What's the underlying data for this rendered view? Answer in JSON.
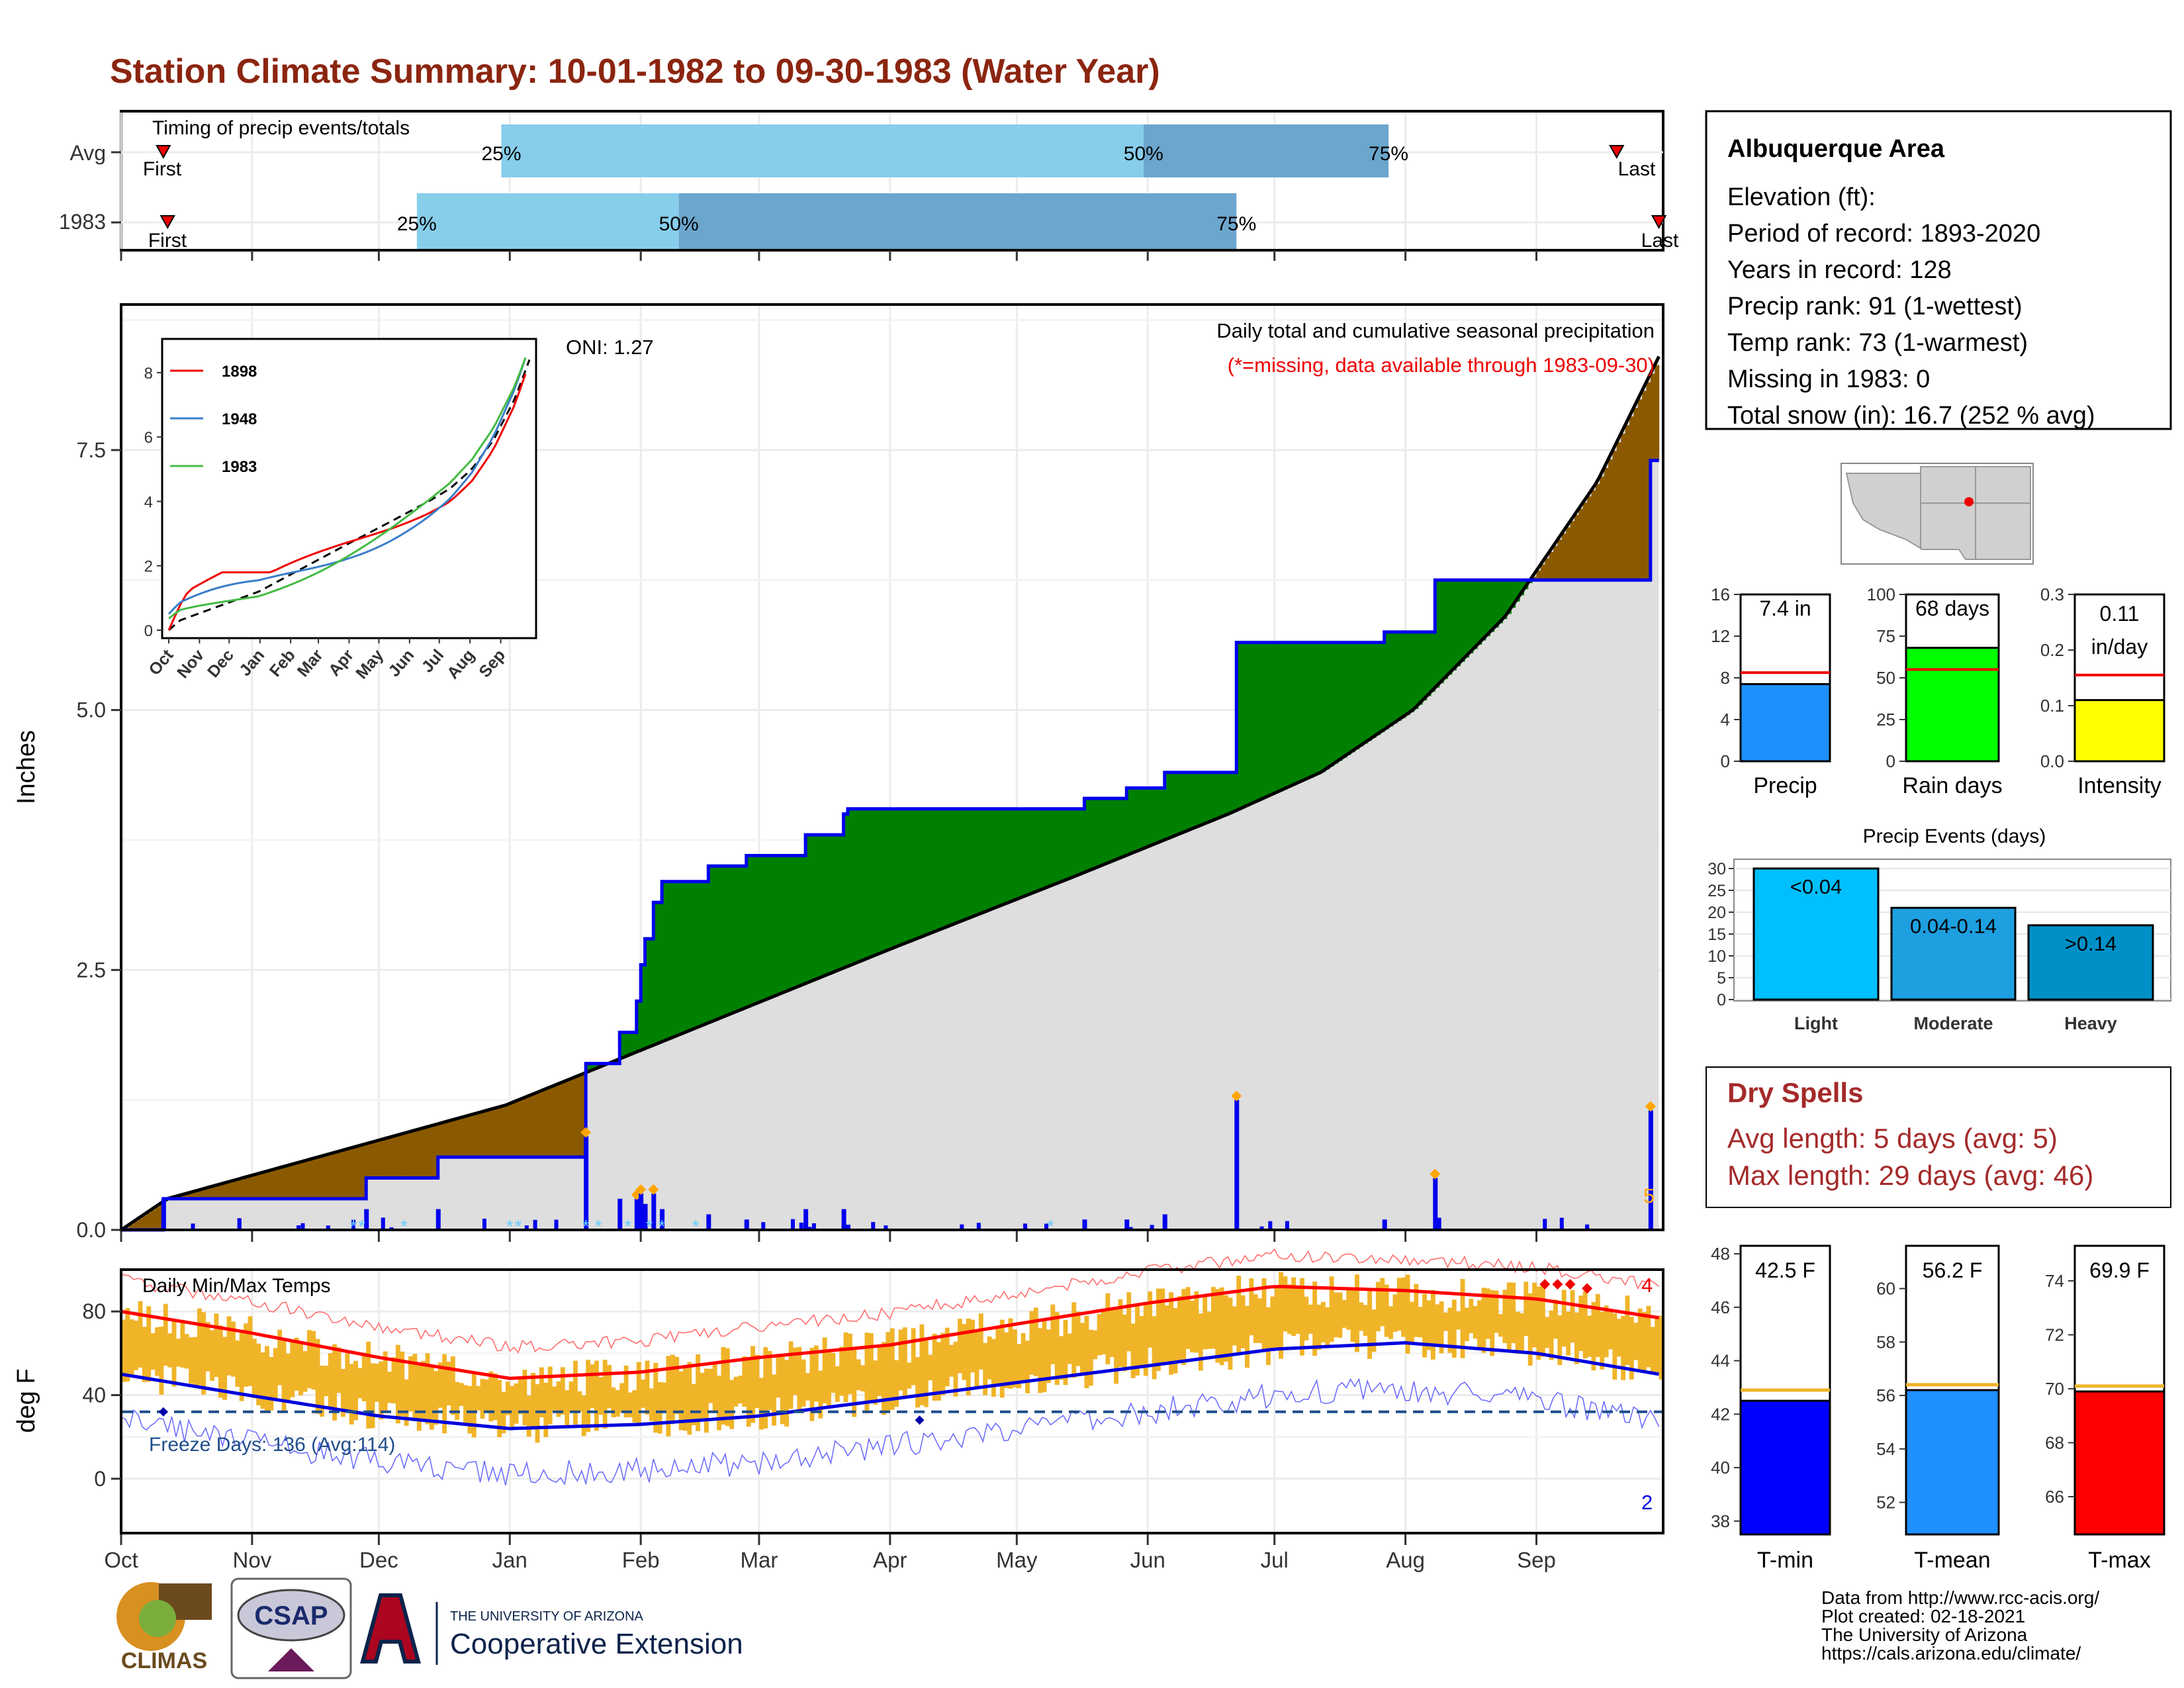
{
  "page": {
    "title": "Station Climate Summary: 10-01-1982 to 09-30-1983 (Water Year)"
  },
  "colors": {
    "title": "#8B2510",
    "timing_light": "#87CEEB",
    "timing_dark": "#6CA6CD",
    "below_avg_fill": "#8B5A00",
    "above_avg_fill": "#008000",
    "avg_fill": "#DEDEDE",
    "precip_line": "#0000EE",
    "temp_bar": "#F0B429",
    "tmax": "#FF0000",
    "tmin": "#0000DD",
    "freeze": "#1F4E8C",
    "precip_bar": "#1E90FF",
    "rain_bar": "#00FF00",
    "intensity_bar": "#FFFF00",
    "light": "#00BFFF",
    "moderate": "#1E9FE0",
    "heavy": "#0090C8",
    "tmin_bar": "#0000FF",
    "tmean_bar": "#1E90FF",
    "tmax_bar": "#FF0000",
    "dry_spell_text": "#A52A2A"
  },
  "timing": {
    "title": "Timing of precip events/totals",
    "rows": [
      {
        "label": "Avg",
        "first_label": "First",
        "last_label": "Last",
        "first_date": "1982-10-11",
        "last_date": "1983-09-20",
        "p25": "1982-12-30",
        "p50": "1983-05-31",
        "p75": "1983-07-28"
      },
      {
        "label": "1983",
        "first_label": "First",
        "last_label": "Last",
        "first_date": "1982-10-12",
        "last_date": "1983-09-30",
        "p25": "1982-12-10",
        "p50": "1983-02-10",
        "p75": "1983-06-22"
      }
    ],
    "pct_labels": [
      "25%",
      "50%",
      "75%"
    ]
  },
  "precip_panel": {
    "ylabel": "Inches",
    "caption": "Daily total and cumulative seasonal precipitation",
    "missing_note": "(*=missing, data available through 1983-09-30)",
    "oni": "ONI: 1.27",
    "extreme_count": "5",
    "yticks": [
      "0.0",
      "2.5",
      "5.0",
      "7.5"
    ]
  },
  "inset": {
    "yticks": [
      "0",
      "2",
      "4",
      "6",
      "8"
    ],
    "months": [
      "Oct",
      "Nov",
      "Dec",
      "Jan",
      "Feb",
      "Mar",
      "Apr",
      "May",
      "Jun",
      "Jul",
      "Aug",
      "Sep"
    ],
    "legend": [
      "1898",
      "1948",
      "1983"
    ],
    "legend_colors": [
      "#EE0000",
      "#3A7DC9",
      "#44BB44"
    ]
  },
  "temp_panel": {
    "ylabel": "deg F",
    "title": "Daily Min/Max Temps",
    "freeze_text": "Freeze Days: 136 (Avg:114)",
    "hot_count": "4",
    "cold_count": "2",
    "yticks": [
      "0",
      "40",
      "80"
    ]
  },
  "x_months": [
    "Oct",
    "Nov",
    "Dec",
    "Jan",
    "Feb",
    "Mar",
    "Apr",
    "May",
    "Jun",
    "Jul",
    "Aug",
    "Sep"
  ],
  "info": {
    "station": "Albuquerque Area",
    "lines": [
      "Elevation (ft):",
      "Period of record: 1893-2020",
      "Years in record: 128",
      "Precip rank: 91 (1-wettest)",
      "Temp rank: 73 (1-warmest)",
      "Missing in 1983: 0",
      "Total snow (in): 16.7 (252 % avg)"
    ]
  },
  "mini_bars": [
    {
      "name": "Precip",
      "label": "7.4 in",
      "value": 7.4,
      "avg": 8.5,
      "ymax": 16,
      "ticks": [
        "0",
        "4",
        "8",
        "12",
        "16"
      ]
    },
    {
      "name": "Rain days",
      "label": "68 days",
      "value": 68,
      "avg": 55,
      "ymax": 100,
      "ticks": [
        "0",
        "25",
        "50",
        "75",
        "100"
      ]
    },
    {
      "name": "Intensity",
      "label_line1": "0.11",
      "label_line2": "in/day",
      "value": 0.11,
      "avg": 0.155,
      "ymax": 0.3,
      "ticks": [
        "0.0",
        "0.1",
        "0.2",
        "0.3"
      ]
    }
  ],
  "events": {
    "title": "Precip Events (days)",
    "categories": [
      "Light",
      "Moderate",
      "Heavy"
    ],
    "values": [
      30,
      21,
      17
    ],
    "bar_labels": [
      "<0.04",
      "0.04-0.14",
      ">0.14"
    ],
    "ticks": [
      "0",
      "5",
      "10",
      "15",
      "20",
      "25",
      "30"
    ]
  },
  "dry_spells": {
    "title": "Dry Spells",
    "avg_line": "Avg length: 5 days (avg: 5)",
    "max_line": "Max length: 29 days (avg: 46)"
  },
  "temp_bars": [
    {
      "name": "T-min",
      "label": "42.5 F",
      "value": 42.5,
      "avg": 42.9,
      "ymin": 37.5,
      "ymax": 48.3,
      "ticks": [
        "38",
        "40",
        "42",
        "44",
        "46",
        "48"
      ]
    },
    {
      "name": "T-mean",
      "label": "56.2 F",
      "value": 56.2,
      "avg": 56.4,
      "ymin": 50.8,
      "ymax": 61.6,
      "ticks": [
        "52",
        "54",
        "56",
        "58",
        "60"
      ]
    },
    {
      "name": "T-max",
      "label": "69.9 F",
      "value": 69.9,
      "avg": 70.1,
      "ymin": 64.6,
      "ymax": 75.3,
      "ticks": [
        "66",
        "68",
        "70",
        "72",
        "74"
      ]
    }
  ],
  "footer": {
    "lines": [
      "Data from http://www.rcc-acis.org/",
      "Plot created: 02-18-2021",
      "The University of Arizona",
      "https://cals.arizona.edu/climate/"
    ],
    "climas": "CLIMAS",
    "csap": "CSAP",
    "uofa_small": "THE UNIVERSITY OF ARIZONA",
    "coop": "Cooperative Extension"
  },
  "chart_data": [
    {
      "type": "area",
      "title": "Daily total and cumulative seasonal precipitation",
      "ylabel": "Inches",
      "ylim": [
        0,
        8.9
      ],
      "x_unit": "day of water year (0 = Oct 1 1982)",
      "series": [
        {
          "name": "1983",
          "x": [
            0,
            10,
            40,
            58,
            75,
            110,
            118,
            122,
            123,
            124,
            126,
            128,
            139,
            148,
            162,
            171,
            172,
            186,
            196,
            228,
            238,
            247,
            263,
            264,
            270,
            299,
            311,
            314,
            342,
            362,
            364
          ],
          "values": [
            0,
            0.3,
            0.3,
            0.5,
            0.7,
            1.6,
            1.9,
            2.2,
            2.55,
            2.8,
            3.15,
            3.35,
            3.5,
            3.6,
            3.8,
            4.0,
            4.05,
            4.05,
            4.05,
            4.15,
            4.25,
            4.4,
            4.4,
            5.65,
            5.65,
            5.75,
            6.25,
            6.25,
            6.25,
            7.4,
            7.4
          ]
        }
      ]
    },
    {
      "type": "line",
      "title": "Daily Min/Max Temps",
      "ylabel": "deg F",
      "ylim": [
        -20,
        100
      ],
      "series": [
        {
          "name": "Avg Tmax",
          "x": [
            0,
            30,
            61,
            92,
            123,
            151,
            182,
            212,
            243,
            273,
            304,
            335,
            364
          ],
          "values": [
            80,
            70,
            58,
            48,
            51,
            58,
            64,
            74,
            84,
            92,
            90,
            86,
            77
          ]
        },
        {
          "name": "Avg Tmin",
          "x": [
            0,
            30,
            61,
            92,
            123,
            151,
            182,
            212,
            243,
            273,
            304,
            335,
            364
          ],
          "values": [
            50,
            40,
            30,
            24,
            26,
            30,
            38,
            46,
            54,
            62,
            65,
            60,
            50
          ]
        }
      ]
    }
  ]
}
